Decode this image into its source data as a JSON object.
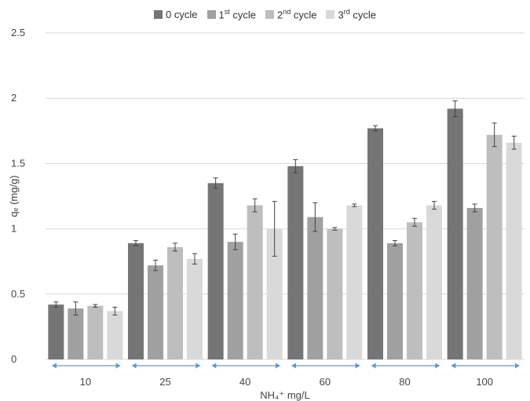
{
  "chart_data": {
    "type": "bar",
    "xlabel": "NH₄⁺ mg/L",
    "ylabel": "qₑ (mg/g)",
    "ylim": [
      0,
      2.5
    ],
    "yticks": [
      "0",
      "0.5",
      "1",
      "1.5",
      "2",
      "2.5"
    ],
    "grid": true,
    "legend_position": "top",
    "categories": [
      "10",
      "25",
      "40",
      "60",
      "80",
      "100"
    ],
    "series": [
      {
        "name": "0 cycle",
        "label_base": "0 cycle",
        "label_sup": "",
        "label_tail": "",
        "color": "#757575",
        "values": [
          0.42,
          0.89,
          1.35,
          1.48,
          1.77,
          1.92
        ],
        "errors": [
          0.02,
          0.02,
          0.04,
          0.05,
          0.02,
          0.06
        ]
      },
      {
        "name": "1st cycle",
        "label_base": "1",
        "label_sup": "st",
        "label_tail": " cycle",
        "color": "#a0a0a0",
        "values": [
          0.39,
          0.72,
          0.9,
          1.09,
          0.89,
          1.16
        ],
        "errors": [
          0.05,
          0.04,
          0.06,
          0.11,
          0.02,
          0.03
        ]
      },
      {
        "name": "2nd cycle",
        "label_base": "2",
        "label_sup": "nd",
        "label_tail": " cycle",
        "color": "#bebebe",
        "values": [
          0.41,
          0.86,
          1.18,
          1.0,
          1.05,
          1.72
        ],
        "errors": [
          0.01,
          0.03,
          0.05,
          0.01,
          0.03,
          0.09
        ]
      },
      {
        "name": "3rd cycle",
        "label_base": "3",
        "label_sup": "rd",
        "label_tail": " cycle",
        "color": "#d9d9d9",
        "values": [
          0.37,
          0.77,
          1.0,
          1.18,
          1.18,
          1.66
        ],
        "errors": [
          0.03,
          0.04,
          0.21,
          0.01,
          0.03,
          0.05
        ]
      }
    ],
    "axis_arrow_color": "#5b9bd5"
  }
}
